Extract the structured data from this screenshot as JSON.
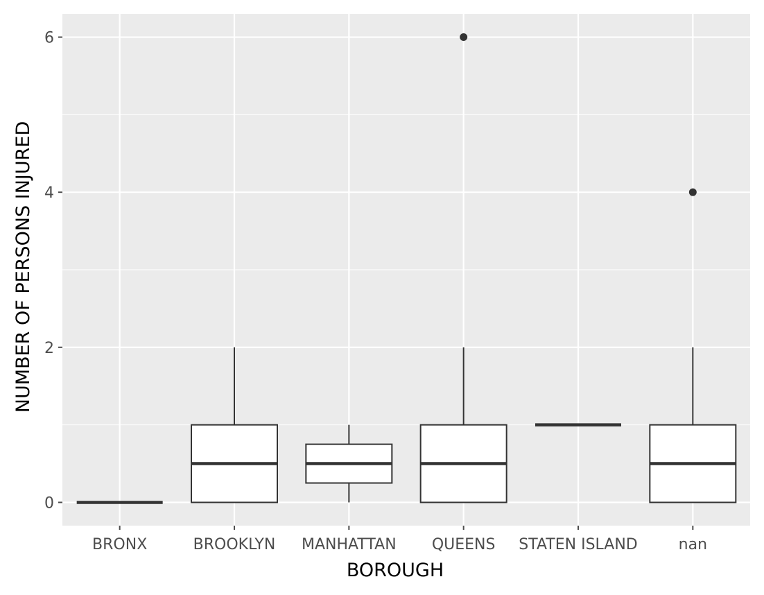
{
  "chart_data": {
    "type": "boxplot",
    "title": "",
    "xlabel": "BOROUGH",
    "ylabel": "NUMBER OF PERSONS INJURED",
    "ylim": [
      -0.3,
      6.3
    ],
    "yticks": [
      0,
      2,
      4,
      6
    ],
    "grid": true,
    "colors": {
      "panel_bg": "#ebebeb",
      "grid": "#ffffff",
      "box_fill": "#ffffff",
      "box_stroke": "#333333",
      "tick_text": "#4d4d4d"
    },
    "categories": [
      "BRONX",
      "BROOKLYN",
      "MANHATTAN",
      "QUEENS",
      "STATEN ISLAND",
      "nan"
    ],
    "boxes": [
      {
        "category": "BRONX",
        "whisker_low": 0,
        "q1": 0,
        "median": 0,
        "q3": 0,
        "whisker_high": 0,
        "outliers": []
      },
      {
        "category": "BROOKLYN",
        "whisker_low": 0,
        "q1": 0,
        "median": 0.5,
        "q3": 1,
        "whisker_high": 2,
        "outliers": []
      },
      {
        "category": "MANHATTAN",
        "whisker_low": 0,
        "q1": 0.25,
        "median": 0.5,
        "q3": 0.75,
        "whisker_high": 1,
        "outliers": []
      },
      {
        "category": "QUEENS",
        "whisker_low": 0,
        "q1": 0,
        "median": 0.5,
        "q3": 1,
        "whisker_high": 2,
        "outliers": [
          6
        ]
      },
      {
        "category": "STATEN ISLAND",
        "whisker_low": 1,
        "q1": 1,
        "median": 1,
        "q3": 1,
        "whisker_high": 1,
        "outliers": []
      },
      {
        "category": "nan",
        "whisker_low": 0,
        "q1": 0,
        "median": 0.5,
        "q3": 1,
        "whisker_high": 2,
        "outliers": [
          4
        ]
      }
    ]
  }
}
